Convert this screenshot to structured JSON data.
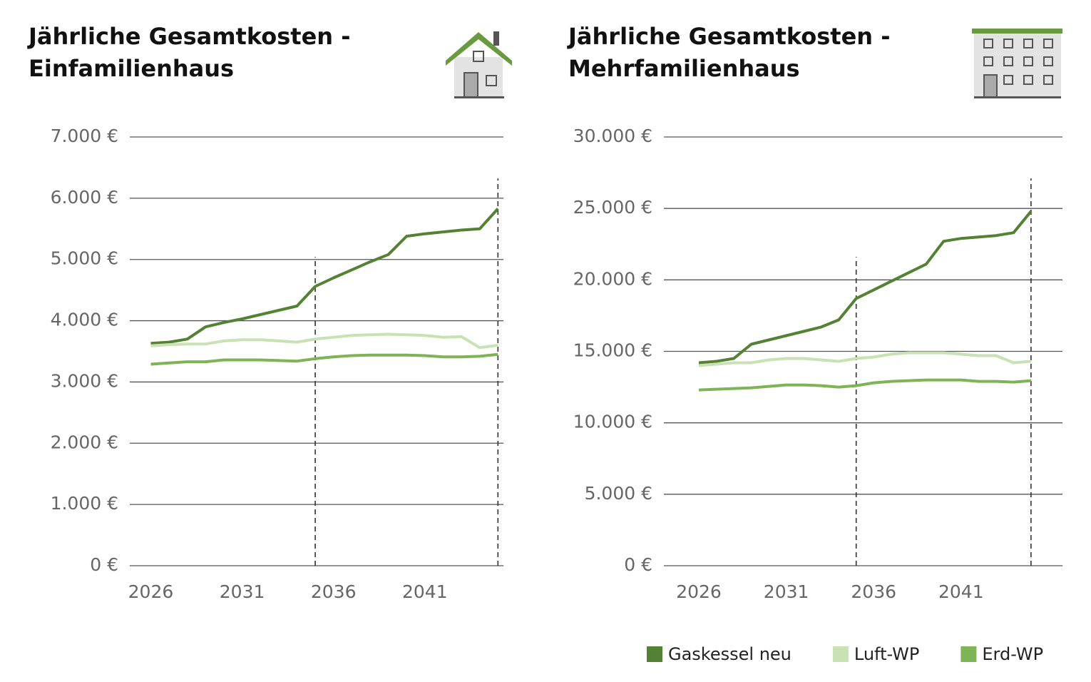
{
  "chart_data": [
    {
      "type": "line",
      "title": "Jährliche Gesamtkosten -",
      "subtitle": "Einfamilienhaus",
      "x": [
        2026,
        2027,
        2028,
        2029,
        2030,
        2031,
        2032,
        2033,
        2034,
        2035,
        2036,
        2037,
        2038,
        2039,
        2040,
        2041,
        2042,
        2043,
        2044,
        2045
      ],
      "xlim": [
        2024.85,
        2045.3
      ],
      "xticks": [
        2026,
        2031,
        2036,
        2041
      ],
      "ylim": [
        0,
        7000
      ],
      "yticks": [
        {
          "value": 0,
          "label": "0 €"
        },
        {
          "value": 1000,
          "label": "1.000 €"
        },
        {
          "value": 2000,
          "label": "2.000 €"
        },
        {
          "value": 3000,
          "label": "3.000 €"
        },
        {
          "value": 4000,
          "label": "4.000 €"
        },
        {
          "value": 5000,
          "label": "5.000 €"
        },
        {
          "value": 6000,
          "label": "6.000 €"
        },
        {
          "value": 7000,
          "label": "7.000 €"
        }
      ],
      "grid": true,
      "vlines": [
        2035,
        2045
      ],
      "series": [
        {
          "color": "#548235",
          "values": [
            3630,
            3650,
            3700,
            3900,
            3970,
            4030,
            4100,
            4170,
            4240,
            4560,
            4700,
            4830,
            4960,
            5080,
            5380,
            5420,
            5450,
            5480,
            5500,
            5830
          ]
        },
        {
          "color": "#c9e2b3",
          "values": [
            3590,
            3610,
            3620,
            3620,
            3670,
            3690,
            3690,
            3670,
            3650,
            3700,
            3730,
            3760,
            3770,
            3780,
            3770,
            3760,
            3730,
            3740,
            3560,
            3600
          ]
        },
        {
          "color": "#7eb356",
          "values": [
            3290,
            3310,
            3330,
            3330,
            3360,
            3360,
            3360,
            3350,
            3340,
            3380,
            3410,
            3430,
            3440,
            3440,
            3440,
            3430,
            3410,
            3410,
            3420,
            3450
          ]
        }
      ]
    },
    {
      "type": "line",
      "title": "Jährliche Gesamtkosten -",
      "subtitle": "Mehrfamilienhaus",
      "x": [
        2026,
        2027,
        2028,
        2029,
        2030,
        2031,
        2032,
        2033,
        2034,
        2035,
        2036,
        2037,
        2038,
        2039,
        2040,
        2041,
        2042,
        2043,
        2044,
        2045
      ],
      "xlim": [
        2024.0,
        2046.8
      ],
      "xticks": [
        2026,
        2031,
        2036,
        2041
      ],
      "ylim": [
        0,
        30000
      ],
      "yticks": [
        {
          "value": 0,
          "label": "0 €"
        },
        {
          "value": 5000,
          "label": "5.000 €"
        },
        {
          "value": 10000,
          "label": "10.000 €"
        },
        {
          "value": 15000,
          "label": "15.000 €"
        },
        {
          "value": 20000,
          "label": "20.000 €"
        },
        {
          "value": 25000,
          "label": "25.000 €"
        },
        {
          "value": 30000,
          "label": "30.000 €"
        }
      ],
      "grid": true,
      "vlines": [
        2035,
        2045
      ],
      "legend": "bottom-right",
      "series": [
        {
          "name": "Gaskessel neu",
          "color": "#548235",
          "values": [
            14200,
            14300,
            14500,
            15500,
            15800,
            16100,
            16400,
            16700,
            17200,
            18700,
            19300,
            19900,
            20500,
            21100,
            22700,
            22900,
            23000,
            23100,
            23300,
            24800
          ]
        },
        {
          "name": "Luft-WP",
          "color": "#c9e2b3",
          "values": [
            14000,
            14100,
            14200,
            14200,
            14400,
            14500,
            14500,
            14400,
            14300,
            14500,
            14600,
            14800,
            14900,
            14900,
            14900,
            14800,
            14700,
            14700,
            14200,
            14300
          ]
        },
        {
          "name": "Erd-WP",
          "color": "#7eb356",
          "values": [
            12300,
            12350,
            12400,
            12450,
            12550,
            12650,
            12650,
            12600,
            12500,
            12600,
            12800,
            12900,
            12950,
            13000,
            13000,
            13000,
            12900,
            12900,
            12850,
            12950
          ]
        }
      ]
    }
  ]
}
